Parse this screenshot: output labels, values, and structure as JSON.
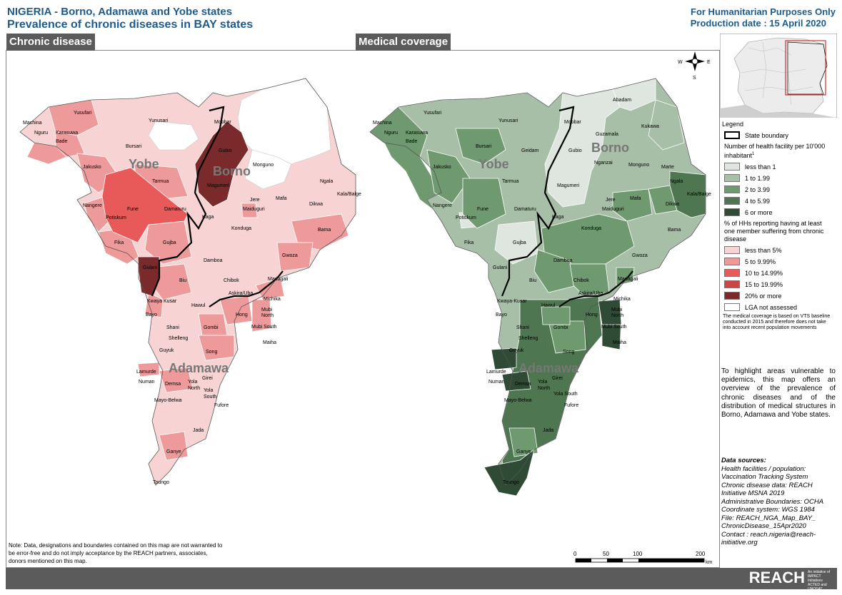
{
  "header": {
    "title_line1": "NIGERIA - Borno, Adamawa and Yobe states",
    "title_line2": "Prevalence of chronic diseases in BAY states",
    "humanitarian": "For Humanitarian Purposes Only",
    "production_date": "Production date : 15 April 2020"
  },
  "panels": {
    "left_title": "Chronic disease",
    "right_title": "Medical coverage"
  },
  "state_labels": [
    "Yobe",
    "Borno",
    "Adamawa"
  ],
  "compass": {
    "n": "N",
    "s": "S",
    "e": "E",
    "w": "W"
  },
  "legend": {
    "title": "Legend",
    "state_boundary": "State boundary",
    "coverage_title": "Number of health facility per 10'000 inhabitant",
    "coverage_sup": "1",
    "coverage_classes": [
      {
        "label": "less than 1",
        "color": "#dfe6df"
      },
      {
        "label": "1 to 1.99",
        "color": "#a7bea7"
      },
      {
        "label": "2 to 3.99",
        "color": "#6f996f"
      },
      {
        "label": "4 to 5.99",
        "color": "#4e7650"
      },
      {
        "label": "6 or more",
        "color": "#2f4a35"
      }
    ],
    "disease_title": "% of HHs reporting having at least one member suffering from chronic disease",
    "disease_classes": [
      {
        "label": "less than 5%",
        "color": "#f7d3d3"
      },
      {
        "label": "5 to 9.99%",
        "color": "#ef9a9a"
      },
      {
        "label": "10 to 14.99%",
        "color": "#e85a5a"
      },
      {
        "label": "15 to 19.99%",
        "color": "#c84848"
      },
      {
        "label": "20% or more",
        "color": "#7a2a2a"
      }
    ],
    "not_assessed": "LGA not assessed",
    "not_assessed_color": "#ffffff",
    "footnote": "The medical coverage is based on VTS baseline conducted in 2015 and therefore does not take into account recent population movements"
  },
  "intro": "To highlight areas vulnerable to epidemics, this map offers an overview of the prevalence of chronic diseases and of the distribution of medical structures in Borno, Adamawa and Yobe states.",
  "sources": {
    "heading": "Data sources:",
    "lines": [
      "Health facilities / population: Vaccination Tracking System",
      "Chronic disease data: REACH Initiative MSNA 2019",
      "Administrative Boundaries: OCHA",
      "Coordinate system: WGS 1984",
      "File: REACH_NGA_Map_BAY_ ChronicDisease_15Apr2020",
      "Contact : reach.nigeria@reach-initiative.org"
    ]
  },
  "note": "Note: Data, designations and boundaries contained on this map are not warranted to be error-free and do not imply acceptance by the REACH partners, associates, donors mentioned on this map.",
  "scale": {
    "ticks": [
      "0",
      "50",
      "100",
      "200"
    ],
    "unit": "km"
  },
  "brand": {
    "name": "REACH",
    "tagline": "An initiative of IMPACT Initiatives ACTED and UNOSAT"
  },
  "lga_labels": [
    "Machina",
    "Yusufari",
    "Nguru",
    "Karasuwa",
    "Bade",
    "Yunusari",
    "Bursari",
    "Geidam",
    "Jakusko",
    "Tarmua",
    "Nangere",
    "Fune",
    "Potiskum",
    "Damaturu",
    "Fika",
    "Gujba",
    "Gulani",
    "Mobbar",
    "Gubio",
    "Abadam",
    "Kukawa",
    "Guzamala",
    "Nganzai",
    "Monguno",
    "Marte",
    "Magumeri",
    "Ngala",
    "Kala/Balge",
    "Jere",
    "Maiduguri",
    "Mafa",
    "Dikwa",
    "Kaga",
    "Konduga",
    "Bama",
    "Damboa",
    "Gwoza",
    "Chibok",
    "Biu",
    "Askira/Uba",
    "Madagali",
    "Michika",
    "Kwaya Kusar",
    "Hawul",
    "Bayo",
    "Hong",
    "Mubi North",
    "Mubi South",
    "Shani",
    "Gombi",
    "Shelleng",
    "Maiha",
    "Guyuk",
    "Song",
    "Lamurde",
    "Numan",
    "Girei",
    "Demsa",
    "Yola North",
    "Yola South",
    "Mayo-Belwa",
    "Fufore",
    "Jada",
    "Ganye",
    "Toungo"
  ]
}
